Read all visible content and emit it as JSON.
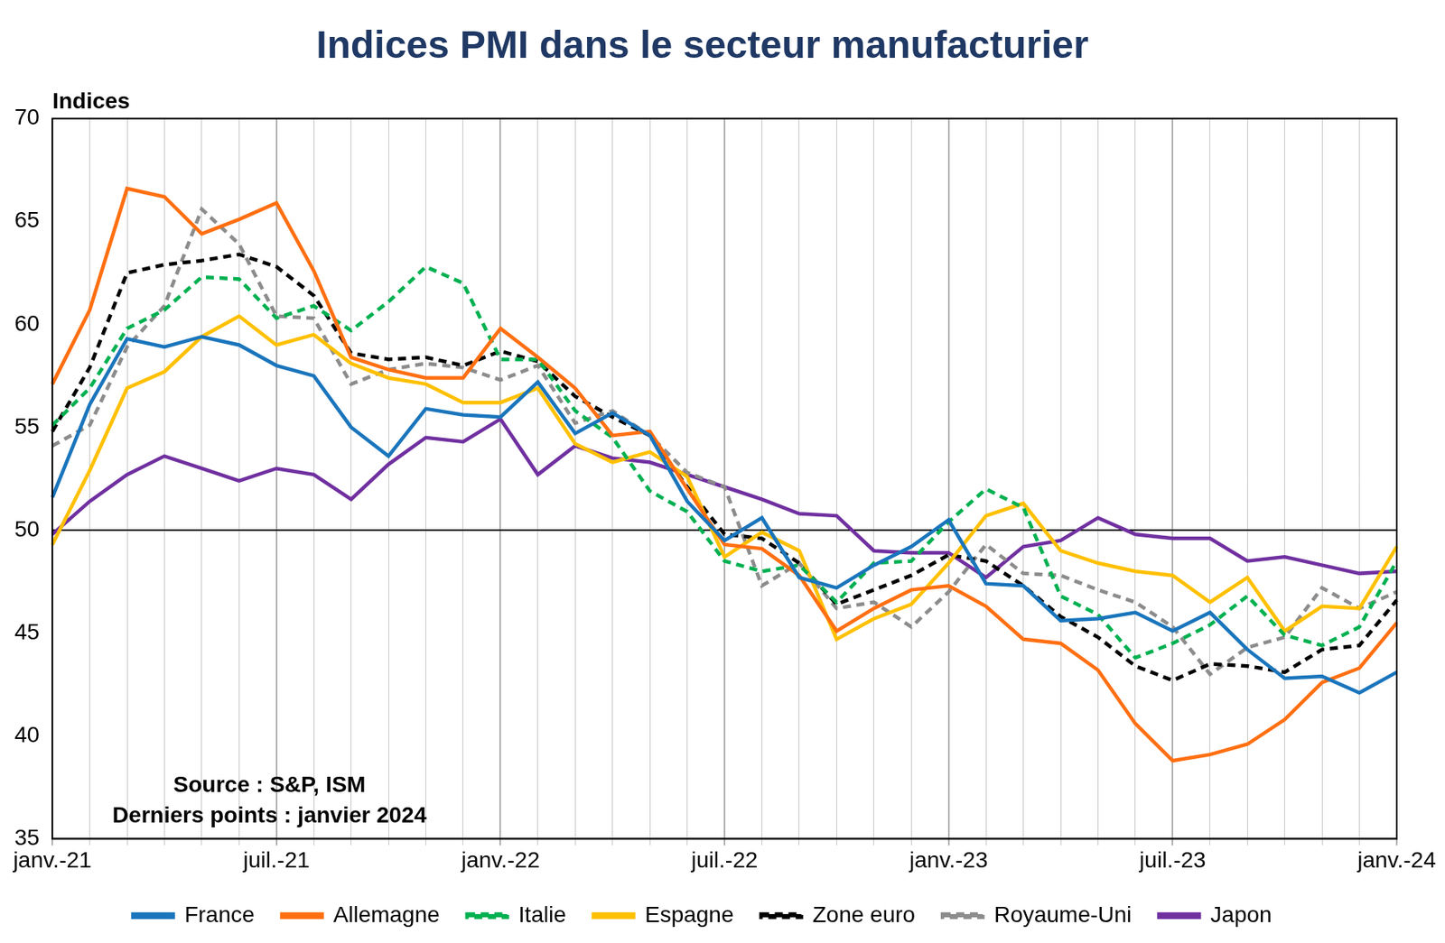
{
  "chart_data": {
    "type": "line",
    "title": "Indices PMI dans le secteur manufacturier",
    "y_label": "Indices",
    "annotations": [
      "Source : S&P, ISM",
      "Derniers points : janvier 2024"
    ],
    "categories": [
      "janv.-21",
      null,
      null,
      null,
      null,
      null,
      "juil.-21",
      null,
      null,
      null,
      null,
      null,
      "janv.-22",
      null,
      null,
      null,
      null,
      null,
      "juil.-22",
      null,
      null,
      null,
      null,
      null,
      "janv.-23",
      null,
      null,
      null,
      null,
      null,
      "juil.-23",
      null,
      null,
      null,
      null,
      null,
      "janv.-24"
    ],
    "series": [
      {
        "name": "France",
        "color": "#1a75bc",
        "line_style": "solid",
        "values": [
          51.6,
          56.1,
          59.3,
          58.9,
          59.4,
          59.0,
          58.0,
          57.5,
          55.0,
          53.6,
          55.9,
          55.6,
          55.5,
          57.2,
          54.7,
          55.7,
          54.6,
          51.4,
          49.5,
          50.6,
          47.7,
          47.2,
          48.3,
          49.2,
          50.5,
          47.4,
          47.3,
          45.6,
          45.7,
          46.0,
          45.1,
          46.0,
          44.2,
          42.8,
          42.9,
          42.1,
          43.1
        ]
      },
      {
        "name": "Allemagne",
        "color": "#ff6f11",
        "line_style": "solid",
        "values": [
          57.1,
          60.7,
          66.6,
          66.2,
          64.4,
          65.1,
          65.9,
          62.6,
          58.4,
          57.8,
          57.4,
          57.4,
          59.8,
          58.4,
          56.9,
          54.6,
          54.8,
          52.0,
          49.3,
          49.1,
          47.8,
          45.1,
          46.2,
          47.1,
          47.3,
          46.3,
          44.7,
          44.5,
          43.2,
          40.6,
          38.8,
          39.1,
          39.6,
          40.8,
          42.6,
          43.3,
          45.5
        ]
      },
      {
        "name": "Italie",
        "color": "#00b050",
        "line_style": "dashed",
        "values": [
          55.1,
          56.9,
          59.8,
          60.7,
          62.3,
          62.2,
          60.3,
          60.9,
          59.7,
          61.1,
          62.8,
          62.0,
          58.3,
          58.3,
          55.8,
          54.5,
          51.9,
          50.9,
          48.5,
          48.0,
          48.3,
          46.5,
          48.4,
          48.5,
          50.4,
          52.0,
          51.1,
          46.8,
          45.9,
          43.8,
          44.5,
          45.4,
          46.8,
          44.9,
          44.4,
          45.3,
          48.5
        ]
      },
      {
        "name": "Espagne",
        "color": "#ffc000",
        "line_style": "solid",
        "values": [
          49.3,
          52.9,
          56.9,
          57.7,
          59.4,
          60.4,
          59.0,
          59.5,
          58.1,
          57.4,
          57.1,
          56.2,
          56.2,
          56.9,
          54.2,
          53.3,
          53.8,
          52.6,
          48.7,
          49.9,
          49.0,
          44.7,
          45.7,
          46.4,
          48.4,
          50.7,
          51.3,
          49.0,
          48.4,
          48.0,
          47.8,
          46.5,
          47.7,
          45.1,
          46.3,
          46.2,
          49.2
        ]
      },
      {
        "name": "Zone euro",
        "color": "#000000",
        "line_style": "dashed",
        "values": [
          54.8,
          57.9,
          62.5,
          62.9,
          63.1,
          63.4,
          62.8,
          61.4,
          58.6,
          58.3,
          58.4,
          58.0,
          58.7,
          58.2,
          56.5,
          55.5,
          54.6,
          52.1,
          49.8,
          49.6,
          48.4,
          46.4,
          47.1,
          47.8,
          48.8,
          48.5,
          47.3,
          45.8,
          44.8,
          43.4,
          42.7,
          43.5,
          43.4,
          43.1,
          44.2,
          44.4,
          46.6
        ]
      },
      {
        "name": "Royaume-Uni",
        "color": "#8c8c8c",
        "line_style": "dashed",
        "values": [
          54.1,
          55.1,
          58.9,
          60.9,
          65.6,
          63.9,
          60.4,
          60.3,
          57.1,
          57.8,
          58.1,
          57.9,
          57.3,
          58.0,
          55.2,
          55.8,
          54.6,
          52.8,
          52.1,
          47.3,
          48.4,
          46.2,
          46.5,
          45.3,
          47.0,
          49.3,
          47.9,
          47.8,
          47.1,
          46.5,
          45.3,
          43.0,
          44.3,
          44.8,
          47.2,
          46.2,
          47.0
        ]
      },
      {
        "name": "Japon",
        "color": "#7030a0",
        "line_style": "solid",
        "values": [
          49.8,
          51.4,
          52.7,
          53.6,
          53.0,
          52.4,
          53.0,
          52.7,
          51.5,
          53.2,
          54.5,
          54.3,
          55.4,
          52.7,
          54.1,
          53.5,
          53.3,
          52.7,
          52.1,
          51.5,
          50.8,
          50.7,
          49.0,
          48.9,
          48.9,
          47.7,
          49.2,
          49.5,
          50.6,
          49.8,
          49.6,
          49.6,
          48.5,
          48.7,
          48.3,
          47.9,
          48.0
        ]
      }
    ],
    "ylim": [
      35,
      70
    ],
    "yticks": [
      35,
      40,
      45,
      50,
      55,
      60,
      65,
      70
    ],
    "reference_line": 50,
    "grid": true,
    "legend": "bottom"
  }
}
